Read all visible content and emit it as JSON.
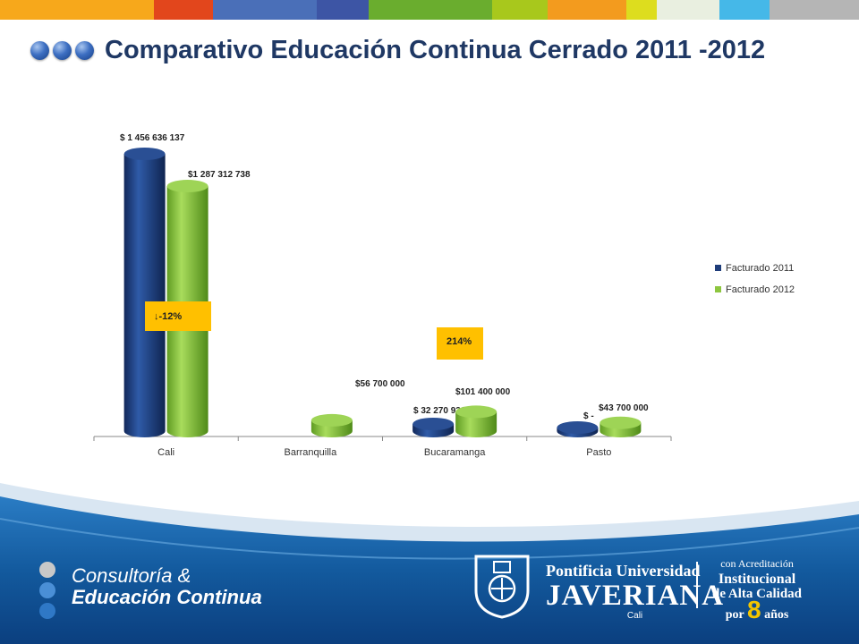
{
  "header": {
    "title": "Comparativo Educación Continua Cerrado 2011 -2012",
    "bar_colors": [
      "#f7a81b",
      "#e2461c",
      "#4a6fb8",
      "#3d55a5",
      "#6aad2e",
      "#a8c81c",
      "#f39b1e",
      "#dddd1e",
      "#e9efe0",
      "#45b8e8",
      "#b5b5b5"
    ]
  },
  "chart_data": {
    "type": "bar",
    "variant": "3d-cylinder",
    "categories": [
      "Cali",
      "Barranquilla",
      "Bucaramanga",
      "Pasto"
    ],
    "series": [
      {
        "name": "Facturado 2011",
        "color": "#1f3d7a",
        "values": [
          1456636137,
          0,
          32270936,
          0
        ],
        "labels": [
          "$ 1 456 636 137",
          "",
          "$ 32 270 936",
          "$ -"
        ]
      },
      {
        "name": "Facturado 2012",
        "color": "#8dc63f",
        "values": [
          1287312738,
          56700000,
          101400000,
          43700000
        ],
        "labels": [
          "$1 287 312 738",
          "$56 700 000",
          "$101 400 000",
          "$43 700 000"
        ]
      }
    ],
    "annotations": [
      {
        "text": "↓-12%",
        "category": "Cali"
      },
      {
        "text": "214%",
        "category": "Bucaramanga"
      }
    ],
    "annotation_color": "#ffc000",
    "legend_position": "right",
    "grid": false
  },
  "footer": {
    "consult_line1": "Consultoría &",
    "consult_line2": "Educación Continua",
    "univ_line1": "Pontificia Universidad",
    "univ_line2": "JAVERIANA",
    "univ_line3": "Cali",
    "acr_line1": "con Acreditación",
    "acr_line2": "Institucional",
    "acr_line3": "de Alta Calidad",
    "acr_por": "por",
    "acr_num": "8",
    "acr_anos": "años",
    "colors": {
      "dark_blue": "#0b3f7f",
      "mid_blue": "#1f6fb5",
      "dot_gray": "#c8c8c8",
      "dot_blue1": "#4a8fd6",
      "dot_blue2": "#2f78c6"
    }
  }
}
